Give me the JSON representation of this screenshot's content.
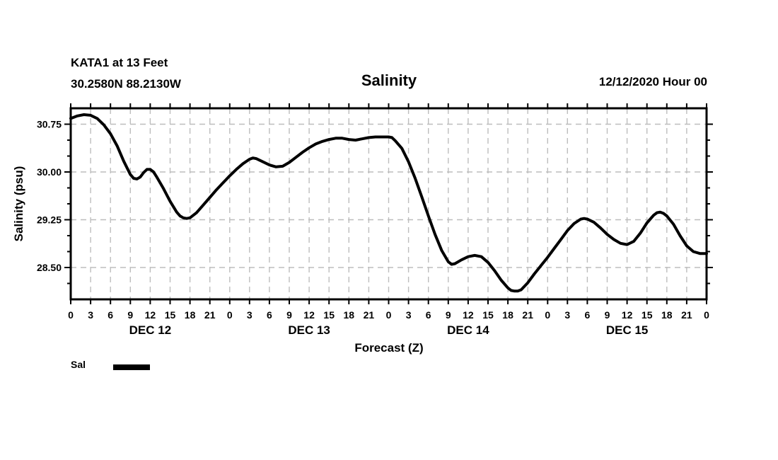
{
  "chart_data": {
    "type": "line",
    "title": "Salinity",
    "station_line1": "KATA1 at 13 Feet",
    "station_line2": "30.2580N 88.2130W",
    "datetime": "12/12/2020 Hour 00",
    "xlabel": "Forecast (Z)",
    "ylabel": "Salinity (psu)",
    "x_range_hours": [
      0,
      96
    ],
    "ylim": [
      28.0,
      31.0
    ],
    "grid": true,
    "grid_color": "#bdbdbd",
    "frame_color": "#000000",
    "x_tick_step_hours": 3,
    "x_tick_labels": [
      "0",
      "3",
      "6",
      "9",
      "12",
      "15",
      "18",
      "21",
      "0",
      "3",
      "6",
      "9",
      "12",
      "15",
      "18",
      "21",
      "0",
      "3",
      "6",
      "9",
      "12",
      "15",
      "18",
      "21",
      "0",
      "3",
      "6",
      "9",
      "12",
      "15",
      "18",
      "21",
      "0"
    ],
    "day_labels": [
      {
        "hour": 12,
        "label": "DEC 12"
      },
      {
        "hour": 36,
        "label": "DEC 13"
      },
      {
        "hour": 60,
        "label": "DEC 14"
      },
      {
        "hour": 84,
        "label": "DEC 15"
      }
    ],
    "y_major_ticks": [
      {
        "value": 28.5,
        "label": "28.50"
      },
      {
        "value": 29.25,
        "label": "29.25"
      },
      {
        "value": 30.0,
        "label": "30.00"
      },
      {
        "value": 30.75,
        "label": "30.75"
      }
    ],
    "y_minor_step": 0.25,
    "legend": [
      {
        "label": "Sal",
        "color": "#000000"
      }
    ],
    "series": [
      {
        "name": "Sal",
        "color": "#000000",
        "line_width": 4,
        "points": [
          [
            0,
            30.84
          ],
          [
            1,
            30.88
          ],
          [
            2,
            30.9
          ],
          [
            3,
            30.89
          ],
          [
            4,
            30.84
          ],
          [
            5,
            30.74
          ],
          [
            6,
            30.6
          ],
          [
            7,
            30.41
          ],
          [
            8,
            30.17
          ],
          [
            9,
            29.96
          ],
          [
            9.5,
            29.9
          ],
          [
            10,
            29.89
          ],
          [
            10.5,
            29.92
          ],
          [
            11,
            29.99
          ],
          [
            11.5,
            30.04
          ],
          [
            12,
            30.04
          ],
          [
            12.5,
            30.0
          ],
          [
            13,
            29.92
          ],
          [
            14,
            29.74
          ],
          [
            15,
            29.54
          ],
          [
            16,
            29.37
          ],
          [
            16.5,
            29.31
          ],
          [
            17,
            29.28
          ],
          [
            17.5,
            29.27
          ],
          [
            18,
            29.28
          ],
          [
            19,
            29.36
          ],
          [
            20,
            29.48
          ],
          [
            21,
            29.6
          ],
          [
            22,
            29.72
          ],
          [
            23,
            29.83
          ],
          [
            24,
            29.94
          ],
          [
            25,
            30.04
          ],
          [
            26,
            30.13
          ],
          [
            27,
            30.2
          ],
          [
            27.5,
            30.22
          ],
          [
            28,
            30.21
          ],
          [
            29,
            30.16
          ],
          [
            30,
            30.11
          ],
          [
            31,
            30.08
          ],
          [
            32,
            30.09
          ],
          [
            33,
            30.15
          ],
          [
            34,
            30.23
          ],
          [
            35,
            30.31
          ],
          [
            36,
            30.38
          ],
          [
            37,
            30.44
          ],
          [
            38,
            30.48
          ],
          [
            39,
            30.51
          ],
          [
            40,
            30.53
          ],
          [
            41,
            30.53
          ],
          [
            42,
            30.51
          ],
          [
            43,
            30.5
          ],
          [
            44,
            30.52
          ],
          [
            45,
            30.54
          ],
          [
            46,
            30.55
          ],
          [
            47,
            30.55
          ],
          [
            48,
            30.55
          ],
          [
            48.5,
            30.54
          ],
          [
            49,
            30.49
          ],
          [
            50,
            30.37
          ],
          [
            51,
            30.16
          ],
          [
            52,
            29.9
          ],
          [
            53,
            29.61
          ],
          [
            54,
            29.31
          ],
          [
            55,
            29.02
          ],
          [
            56,
            28.77
          ],
          [
            57,
            28.59
          ],
          [
            57.5,
            28.55
          ],
          [
            58,
            28.56
          ],
          [
            59,
            28.62
          ],
          [
            60,
            28.67
          ],
          [
            61,
            28.69
          ],
          [
            62,
            28.67
          ],
          [
            63,
            28.58
          ],
          [
            64,
            28.45
          ],
          [
            65,
            28.3
          ],
          [
            66,
            28.18
          ],
          [
            66.5,
            28.14
          ],
          [
            67,
            28.13
          ],
          [
            67.5,
            28.13
          ],
          [
            68,
            28.15
          ],
          [
            69,
            28.26
          ],
          [
            70,
            28.4
          ],
          [
            71,
            28.53
          ],
          [
            72,
            28.66
          ],
          [
            73,
            28.8
          ],
          [
            74,
            28.94
          ],
          [
            75,
            29.08
          ],
          [
            76,
            29.19
          ],
          [
            77,
            29.26
          ],
          [
            77.5,
            29.27
          ],
          [
            78,
            29.26
          ],
          [
            79,
            29.21
          ],
          [
            80,
            29.12
          ],
          [
            81,
            29.02
          ],
          [
            82,
            28.94
          ],
          [
            83,
            28.88
          ],
          [
            84,
            28.86
          ],
          [
            85,
            28.91
          ],
          [
            86,
            29.04
          ],
          [
            87,
            29.2
          ],
          [
            88,
            29.32
          ],
          [
            88.5,
            29.36
          ],
          [
            89,
            29.37
          ],
          [
            89.5,
            29.35
          ],
          [
            90,
            29.31
          ],
          [
            91,
            29.18
          ],
          [
            92,
            29.0
          ],
          [
            93,
            28.84
          ],
          [
            94,
            28.75
          ],
          [
            95,
            28.72
          ],
          [
            96,
            28.72
          ]
        ]
      }
    ]
  }
}
